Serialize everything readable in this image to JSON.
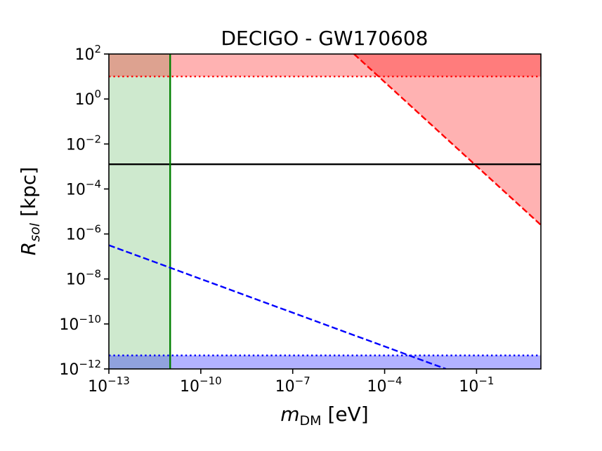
{
  "chart_data": {
    "type": "line",
    "title": "DECIGO - GW170608",
    "xlabel": {
      "main": "m",
      "sub": "DM",
      "unit": " [eV]"
    },
    "ylabel": {
      "main": "R",
      "sub": "sol",
      "unit": " [kpc]"
    },
    "x_scale": "log",
    "y_scale": "log",
    "xlim_log10": [
      -13,
      1.1
    ],
    "ylim_log10": [
      -12,
      2
    ],
    "x_ticks": [
      {
        "base": "10",
        "exp": "−13",
        "log10": -13
      },
      {
        "base": "10",
        "exp": "−10",
        "log10": -10
      },
      {
        "base": "10",
        "exp": "−7",
        "log10": -7
      },
      {
        "base": "10",
        "exp": "−4",
        "log10": -4
      },
      {
        "base": "10",
        "exp": "−1",
        "log10": -1
      }
    ],
    "y_ticks": [
      {
        "base": "10",
        "exp": "2",
        "log10": 2
      },
      {
        "base": "10",
        "exp": "0",
        "log10": 0
      },
      {
        "base": "10",
        "exp": "−2",
        "log10": -2
      },
      {
        "base": "10",
        "exp": "−4",
        "log10": -4
      },
      {
        "base": "10",
        "exp": "−6",
        "log10": -6
      },
      {
        "base": "10",
        "exp": "−8",
        "log10": -8
      },
      {
        "base": "10",
        "exp": "−10",
        "log10": -10
      },
      {
        "base": "10",
        "exp": "−12",
        "log10": -12
      }
    ],
    "series": [
      {
        "name": "red-dashed-bound",
        "style": "dashed",
        "color": "#ff0000",
        "points_log10": [
          [
            -5.0,
            2.0
          ],
          [
            1.1,
            -5.6
          ]
        ],
        "fill_above": true
      },
      {
        "name": "blue-dashed-bound",
        "style": "dashed",
        "color": "#0000ff",
        "points_log10": [
          [
            -13.0,
            -6.5
          ],
          [
            -2.0,
            -12.0
          ]
        ]
      },
      {
        "name": "black-horizontal-line",
        "style": "solid",
        "color": "#000000",
        "y_log10": -2.9
      },
      {
        "name": "green-vertical-line",
        "style": "solid",
        "color": "#008000",
        "x_log10": -11.0,
        "fill_left": true
      },
      {
        "name": "red-dotted-line",
        "style": "dotted",
        "color": "#ff0000",
        "y_log10": 1.0,
        "fill_above": true
      },
      {
        "name": "blue-dotted-line",
        "style": "dotted",
        "color": "#0000ff",
        "y_log10": -11.4,
        "fill_below": true
      }
    ],
    "colors": {
      "red_fill": "#ff0000",
      "green_fill": "#2ca02c",
      "blue_fill": "#0000ff",
      "green_line": "#008000"
    }
  }
}
